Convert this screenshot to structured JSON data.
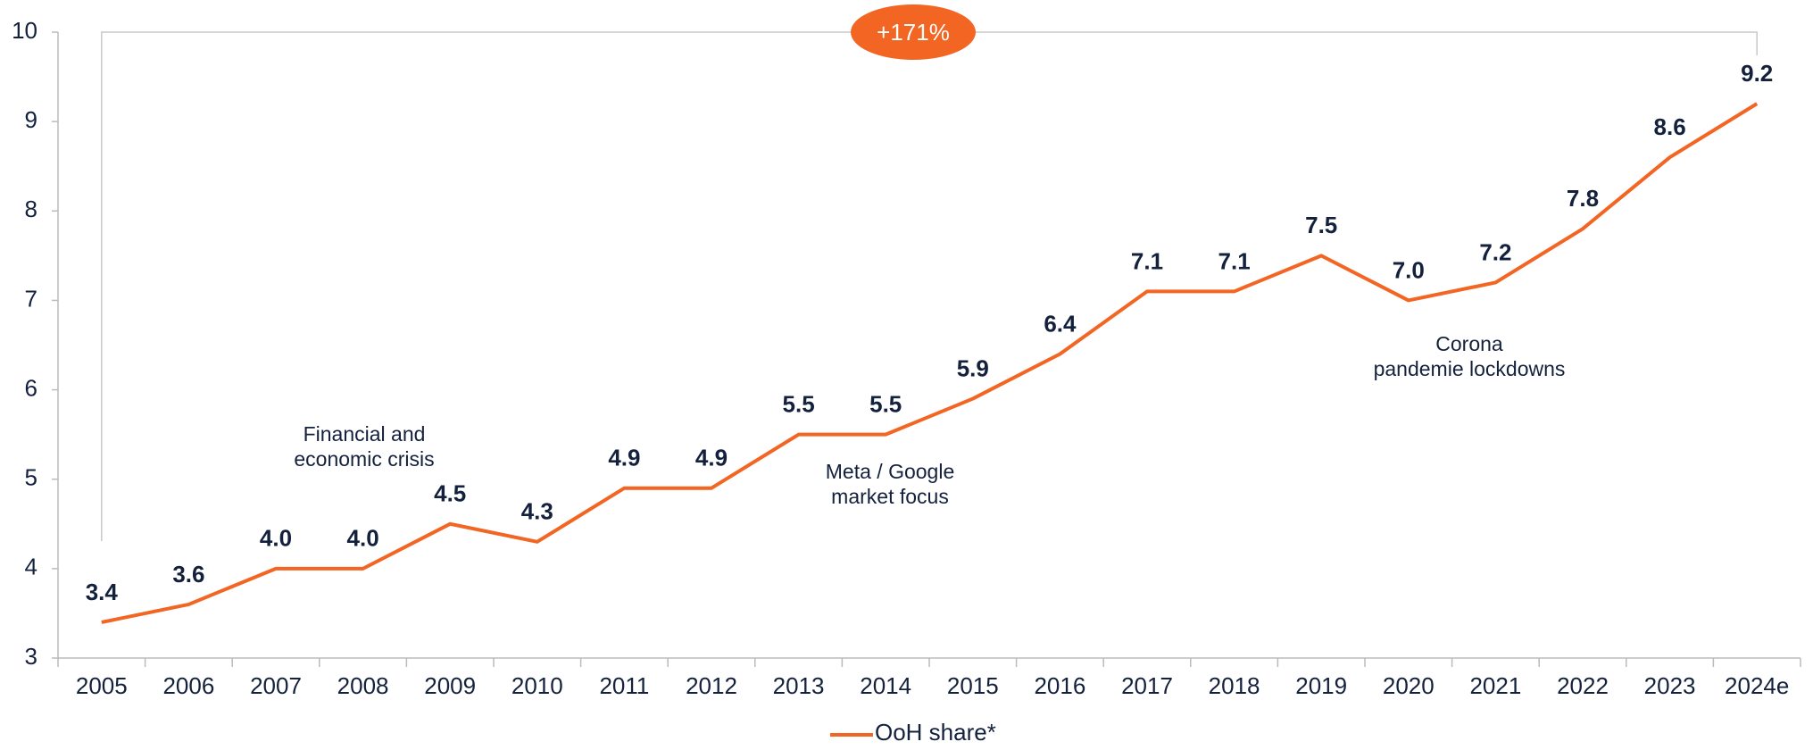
{
  "chart_data": {
    "type": "line",
    "categories": [
      "2005",
      "2006",
      "2007",
      "2008",
      "2009",
      "2010",
      "2011",
      "2012",
      "2013",
      "2014",
      "2015",
      "2016",
      "2017",
      "2018",
      "2019",
      "2020",
      "2021",
      "2022",
      "2023",
      "2024e"
    ],
    "series": [
      {
        "name": "OoH share*",
        "color": "#f26522",
        "values": [
          3.4,
          3.6,
          4.0,
          4.0,
          4.5,
          4.3,
          4.9,
          4.9,
          5.5,
          5.5,
          5.9,
          6.4,
          7.1,
          7.1,
          7.5,
          7.0,
          7.2,
          7.8,
          8.6,
          9.2
        ],
        "value_labels": [
          "3.4",
          "3.6",
          "4.0",
          "4.0",
          "4.5",
          "4.3",
          "4.9",
          "4.9",
          "5.5",
          "5.5",
          "5.9",
          "6.4",
          "7.1",
          "7.1",
          "7.5",
          "7.0",
          "7.2",
          "7.8",
          "8.6",
          "9.2"
        ]
      }
    ],
    "ylim": [
      3,
      10
    ],
    "yticks": [
      3,
      4,
      5,
      6,
      7,
      8,
      9,
      10
    ],
    "grid": false,
    "legend": "bottom",
    "growth_badge": "+171%",
    "annotations": [
      {
        "lines": [
          "Financial and",
          "economic crisis"
        ]
      },
      {
        "lines": [
          "Meta / Google",
          "market focus"
        ]
      },
      {
        "lines": [
          "Corona",
          "pandemie lockdowns"
        ]
      }
    ]
  }
}
